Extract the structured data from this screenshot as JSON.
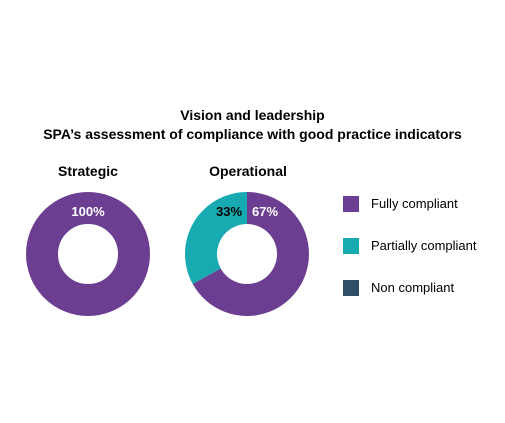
{
  "header": {
    "title": "Vision and leadership",
    "subtitle": "SPA’s assessment of compliance with good practice indicators"
  },
  "colors": {
    "fully": "#6c3e91",
    "partially": "#18aab1",
    "non": "#2d5066",
    "label_on_purple": "#ffffff",
    "label_on_teal": "#000000"
  },
  "chart_data": [
    {
      "type": "pie",
      "title": "Strategic",
      "categories": [
        "Fully compliant",
        "Partially compliant",
        "Non compliant"
      ],
      "values": [
        100,
        0,
        0
      ],
      "data_labels": [
        "100%",
        "",
        ""
      ],
      "donut": true
    },
    {
      "type": "pie",
      "title": "Operational",
      "categories": [
        "Fully compliant",
        "Partially compliant",
        "Non compliant"
      ],
      "values": [
        67,
        33,
        0
      ],
      "data_labels": [
        "67%",
        "33%",
        ""
      ],
      "donut": true
    }
  ],
  "legend": {
    "placement": "right",
    "items": [
      {
        "label": "Fully compliant",
        "color": "#6c3e91"
      },
      {
        "label": "Partially compliant",
        "color": "#18aab1"
      },
      {
        "label": "Non compliant",
        "color": "#2d5066"
      }
    ]
  }
}
